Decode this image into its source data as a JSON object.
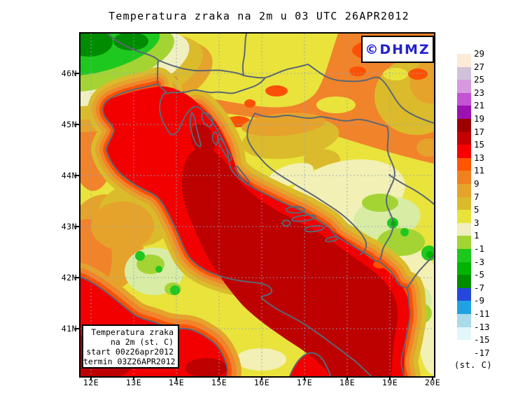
{
  "title": "Temperatura zraka na 2m u 03 UTC 26APR2012",
  "logo": {
    "text": "©DHMZ",
    "color": "#2222CC"
  },
  "inset_legend": {
    "lines": [
      "Temperatura zraka",
      "na 2m (st. C)",
      "start 00z26apr2012",
      "termin 03Z26APR2012"
    ]
  },
  "axes": {
    "lat": [
      "46N",
      "45N",
      "44N",
      "43N",
      "42N",
      "41N"
    ],
    "lon": [
      "12E",
      "13E",
      "14E",
      "15E",
      "16E",
      "17E",
      "18E",
      "19E",
      "20E"
    ]
  },
  "colorbar": {
    "unit": "(st. C)",
    "boundaries": [
      "29",
      "27",
      "25",
      "23",
      "21",
      "19",
      "17",
      "15",
      "13",
      "11",
      "9",
      "7",
      "5",
      "3",
      "1",
      "-1",
      "-3",
      "-5",
      "-7",
      "-9",
      "-11",
      "-13",
      "-15",
      "-17"
    ],
    "segment_colors": [
      "#FBEBD7",
      "#D0C2D8",
      "#D89ADE",
      "#C253D3",
      "#9B11B1",
      "#9E0000",
      "#C40000",
      "#F80000",
      "#FF5500",
      "#F0811F",
      "#E5A32C",
      "#DBBB2B",
      "#E8E33A",
      "#EFEFC1",
      "#A2D435",
      "#1CC81C",
      "#00B400",
      "#008C00",
      "#2448DC",
      "#21A1E0",
      "#ABDAE8",
      "#E2F7F9",
      "#FFFFFF"
    ]
  },
  "map_palette": {
    "sea_red": "#F20000",
    "sea_dark_red": "#BD0000",
    "orange_red": "#FB5106",
    "orange": "#F1832B",
    "amber": "#E5A32C",
    "gold": "#DBBB2B",
    "yellow": "#E9E33C",
    "pale_yellow": "#F2F0B4",
    "pale_green": "#D8ECA4",
    "yellow_green": "#A4D434",
    "green": "#1FC81F",
    "mid_green": "#00B400",
    "dark_green": "#008C00",
    "border_gray": "#5D6773",
    "grid_blue": "#8FA3BC"
  }
}
